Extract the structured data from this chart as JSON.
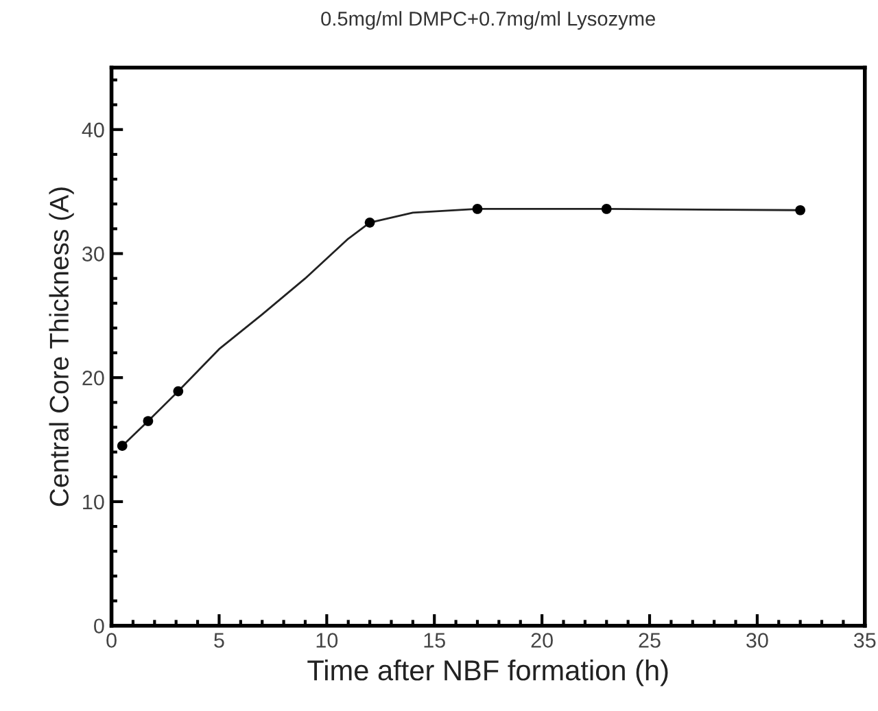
{
  "chart_data": {
    "type": "scatter",
    "title": "0.5mg/ml DMPC+0.7mg/ml Lysozyme",
    "xlabel": "Time after NBF formation (h)",
    "ylabel": "Central Core Thickness (A)",
    "series": [
      {
        "type": "line",
        "color": "#222222",
        "marker": "none",
        "x": [
          0.5,
          1.7,
          3.1,
          5,
          7,
          9,
          10,
          11,
          12,
          14,
          17,
          23,
          32
        ],
        "values": [
          14.5,
          16.5,
          18.9,
          22.3,
          25.1,
          28,
          29.6,
          31.2,
          32.5,
          33.3,
          33.6,
          33.6,
          33.5
        ]
      },
      {
        "color": "#000000",
        "marker": "circle",
        "x": [
          0.5,
          1.7,
          3.1,
          12,
          17,
          23,
          32
        ],
        "values": [
          14.5,
          16.5,
          18.9,
          32.5,
          33.6,
          33.6,
          33.5
        ]
      }
    ],
    "xlim": [
      0,
      35
    ],
    "xticks": [
      0,
      5,
      10,
      15,
      20,
      25,
      30,
      35
    ],
    "ylim": [
      0,
      45
    ],
    "yticks": [
      0,
      10,
      20,
      30,
      40
    ],
    "grid": false,
    "legend": false
  }
}
